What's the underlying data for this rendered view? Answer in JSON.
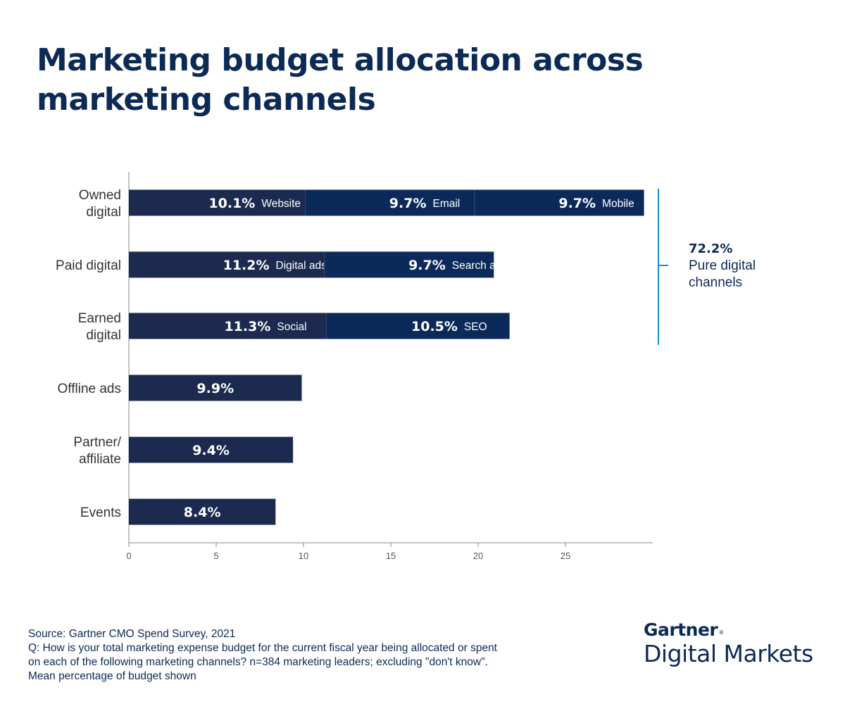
{
  "title": [
    "Marketing budget allocation across",
    "marketing channels"
  ],
  "colors": {
    "bar_dark": "#1b2a4e",
    "bar_alt": "#0b2a5a",
    "text_navy": "#0b2a55",
    "bracket": "#1a8fd0",
    "axis": "#888888"
  },
  "chart_data": {
    "type": "bar",
    "orientation": "horizontal",
    "stacked": true,
    "xlim": [
      0,
      30
    ],
    "xticks": [
      0,
      5,
      10,
      15,
      20,
      25
    ],
    "grid": false,
    "categories": [
      {
        "label": [
          "Owned",
          "digital"
        ],
        "segments": [
          {
            "value": 10.1,
            "text": "10.1%",
            "name": "Website"
          },
          {
            "value": 9.7,
            "text": "9.7%",
            "name": "Email"
          },
          {
            "value": 9.7,
            "text": "9.7%",
            "name": "Mobile"
          }
        ]
      },
      {
        "label": [
          "Paid digital"
        ],
        "segments": [
          {
            "value": 11.2,
            "text": "11.2%",
            "name": "Digital ads"
          },
          {
            "value": 9.7,
            "text": "9.7%",
            "name": "Search ads"
          }
        ]
      },
      {
        "label": [
          "Earned",
          "digital"
        ],
        "segments": [
          {
            "value": 11.3,
            "text": "11.3%",
            "name": "Social"
          },
          {
            "value": 10.5,
            "text": "10.5%",
            "name": "SEO"
          }
        ]
      },
      {
        "label": [
          "Offline ads"
        ],
        "segments": [
          {
            "value": 9.9,
            "text": "9.9%",
            "name": ""
          }
        ]
      },
      {
        "label": [
          "Partner/",
          "affiliate"
        ],
        "segments": [
          {
            "value": 9.4,
            "text": "9.4%",
            "name": ""
          }
        ]
      },
      {
        "label": [
          "Events"
        ],
        "segments": [
          {
            "value": 8.4,
            "text": "8.4%",
            "name": ""
          }
        ]
      }
    ],
    "annotation": {
      "value_text": "72.2%",
      "lines": [
        "Pure digital",
        "channels"
      ],
      "spans_categories": [
        0,
        1,
        2
      ]
    }
  },
  "footer": {
    "lines": [
      "Source: Gartner CMO Spend Survey, 2021",
      "Q: How is your total marketing expense budget for the current fiscal year being allocated or spent",
      "on each of the following marketing channels? n=384 marketing leaders; excluding \"don't know\".",
      "Mean percentage of budget shown"
    ]
  },
  "logo": {
    "brand": "Gartner",
    "mark": "®",
    "sub": "Digital Markets"
  }
}
